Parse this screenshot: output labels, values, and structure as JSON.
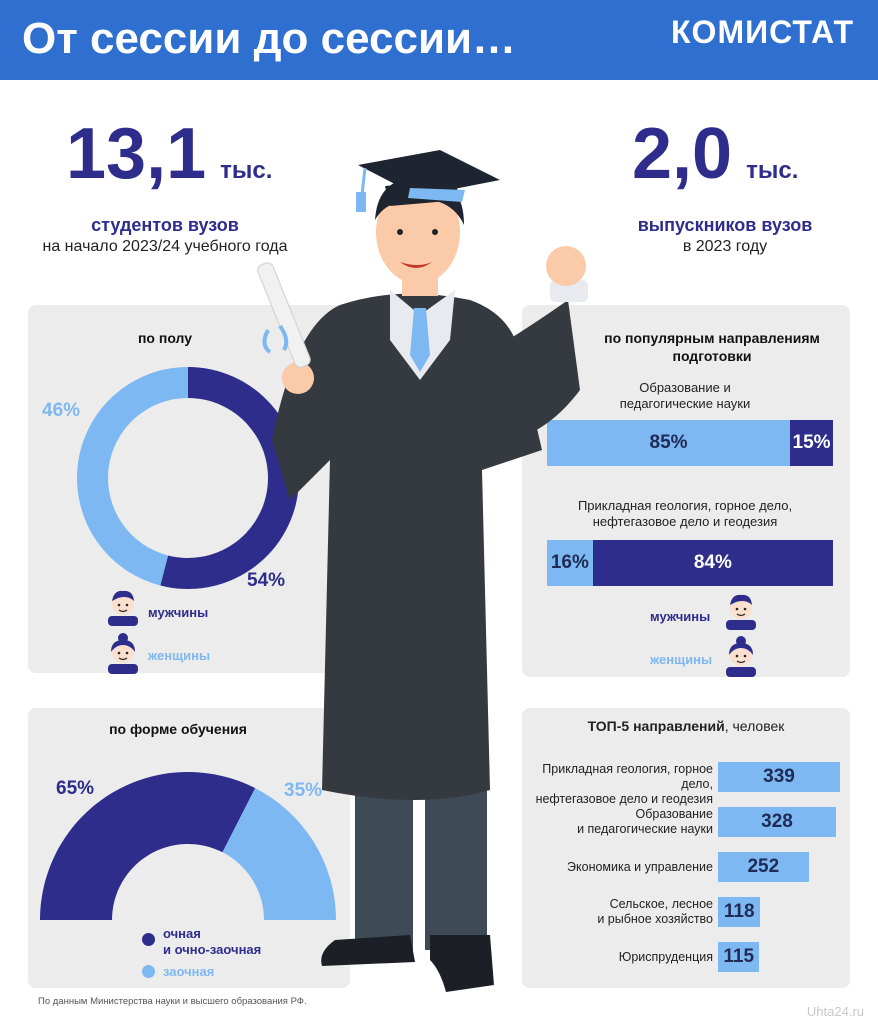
{
  "header": {
    "title": "От сессии до сессии…",
    "brand": "КОМИСТАТ"
  },
  "stats": {
    "students": {
      "value": "13,1",
      "unit": "тыс.",
      "label": "студентов вузов",
      "sub": "на начало 2023/24 учебного года"
    },
    "graduates": {
      "value": "2,0",
      "unit": "тыс.",
      "label": "выпускников вузов",
      "sub": "в 2023 году"
    }
  },
  "colors": {
    "dark": "#2e2d8c",
    "light": "#7db8f2",
    "header": "#2f6fd0",
    "panel": "#ececec"
  },
  "legend": {
    "men": "мужчины",
    "women": "женщины",
    "full_time": "очная\nи очно-заочная",
    "part_time": "заочная"
  },
  "icons": {
    "man": "man-avatar-icon",
    "woman": "woman-avatar-icon",
    "graduate": "graduate-illustration"
  },
  "chart_data": [
    {
      "type": "pie",
      "title": "по полу",
      "categories": [
        "мужчины",
        "женщины"
      ],
      "values": [
        54,
        46
      ],
      "labels": [
        "54%",
        "46%"
      ],
      "colors": [
        "#2e2d8c",
        "#7db8f2"
      ]
    },
    {
      "type": "pie",
      "title": "по форме обучения",
      "categories": [
        "очная и очно-заочная",
        "заочная"
      ],
      "values": [
        65,
        35
      ],
      "labels": [
        "65%",
        "35%"
      ],
      "colors": [
        "#2e2d8c",
        "#7db8f2"
      ]
    },
    {
      "type": "bar",
      "title": "по популярным направлениям подготовки",
      "categories": [
        "Образование и педагогические науки",
        "Прикладная геология, горное дело, нефтегазовое дело и геодезия"
      ],
      "series": [
        {
          "name": "женщины",
          "values": [
            85,
            16
          ]
        },
        {
          "name": "мужчины",
          "values": [
            15,
            84
          ]
        }
      ]
    },
    {
      "type": "bar",
      "title": "ТОП-5 направлений",
      "title_suffix": ", человек",
      "categories": [
        "Прикладная геология, горное дело,\nнефтегазовое дело и геодезия",
        "Образование\nи педагогические науки",
        "Экономика и управление",
        "Сельское, лесное\nи рыбное хозяйство",
        "Юриспруденция"
      ],
      "values": [
        339,
        328,
        252,
        118,
        115
      ]
    }
  ],
  "footnote": "По данным Министерства науки и высшего образования РФ.",
  "watermark": "Uhta24.ru"
}
